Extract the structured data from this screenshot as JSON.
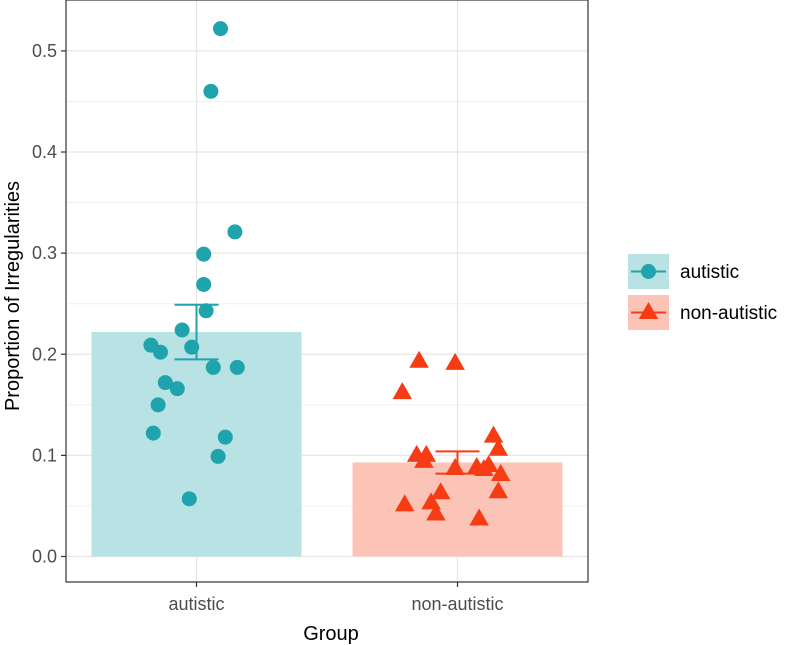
{
  "chart_data": {
    "type": "bar",
    "xlabel": "Group",
    "ylabel": "Proportion of Irregularities",
    "ylim": [
      0,
      0.545
    ],
    "yticks": [
      0.0,
      0.1,
      0.2,
      0.3,
      0.4,
      0.5
    ],
    "ytick_labels": [
      "0.0",
      "0.1",
      "0.2",
      "0.3",
      "0.4",
      "0.5"
    ],
    "grid": true,
    "legend_position": "right",
    "categories": [
      "autistic",
      "non-autistic"
    ],
    "series": [
      {
        "name": "autistic",
        "mean": 0.222,
        "error_low": 0.195,
        "error_high": 0.249,
        "marker": "circle",
        "bar_color": "#b9e2e5",
        "point_color": "#1fa3ac",
        "points": [
          {
            "x": 0.1,
            "y": 0.522
          },
          {
            "x": 0.06,
            "y": 0.46
          },
          {
            "x": 0.16,
            "y": 0.321
          },
          {
            "x": 0.03,
            "y": 0.299
          },
          {
            "x": 0.03,
            "y": 0.269
          },
          {
            "x": 0.04,
            "y": 0.243
          },
          {
            "x": -0.06,
            "y": 0.224
          },
          {
            "x": -0.19,
            "y": 0.209
          },
          {
            "x": -0.02,
            "y": 0.207
          },
          {
            "x": -0.15,
            "y": 0.202
          },
          {
            "x": 0.07,
            "y": 0.187
          },
          {
            "x": 0.17,
            "y": 0.187
          },
          {
            "x": -0.13,
            "y": 0.172
          },
          {
            "x": -0.08,
            "y": 0.166
          },
          {
            "x": -0.16,
            "y": 0.15
          },
          {
            "x": -0.18,
            "y": 0.122
          },
          {
            "x": 0.12,
            "y": 0.118
          },
          {
            "x": 0.09,
            "y": 0.099
          },
          {
            "x": -0.03,
            "y": 0.057
          }
        ]
      },
      {
        "name": "non-autistic",
        "mean": 0.093,
        "error_low": 0.082,
        "error_high": 0.104,
        "marker": "triangle",
        "bar_color": "#fcc3b7",
        "point_color": "#f53c14",
        "points": [
          {
            "x": -0.16,
            "y": 0.193
          },
          {
            "x": -0.01,
            "y": 0.191
          },
          {
            "x": -0.23,
            "y": 0.162
          },
          {
            "x": 0.15,
            "y": 0.119
          },
          {
            "x": 0.17,
            "y": 0.106
          },
          {
            "x": -0.17,
            "y": 0.1
          },
          {
            "x": -0.13,
            "y": 0.1
          },
          {
            "x": -0.14,
            "y": 0.094
          },
          {
            "x": 0.13,
            "y": 0.09
          },
          {
            "x": 0.08,
            "y": 0.088
          },
          {
            "x": -0.01,
            "y": 0.087
          },
          {
            "x": 0.11,
            "y": 0.086
          },
          {
            "x": 0.18,
            "y": 0.081
          },
          {
            "x": 0.17,
            "y": 0.064
          },
          {
            "x": -0.07,
            "y": 0.063
          },
          {
            "x": -0.22,
            "y": 0.051
          },
          {
            "x": -0.11,
            "y": 0.053
          },
          {
            "x": -0.09,
            "y": 0.042
          },
          {
            "x": 0.09,
            "y": 0.037
          }
        ]
      }
    ]
  }
}
